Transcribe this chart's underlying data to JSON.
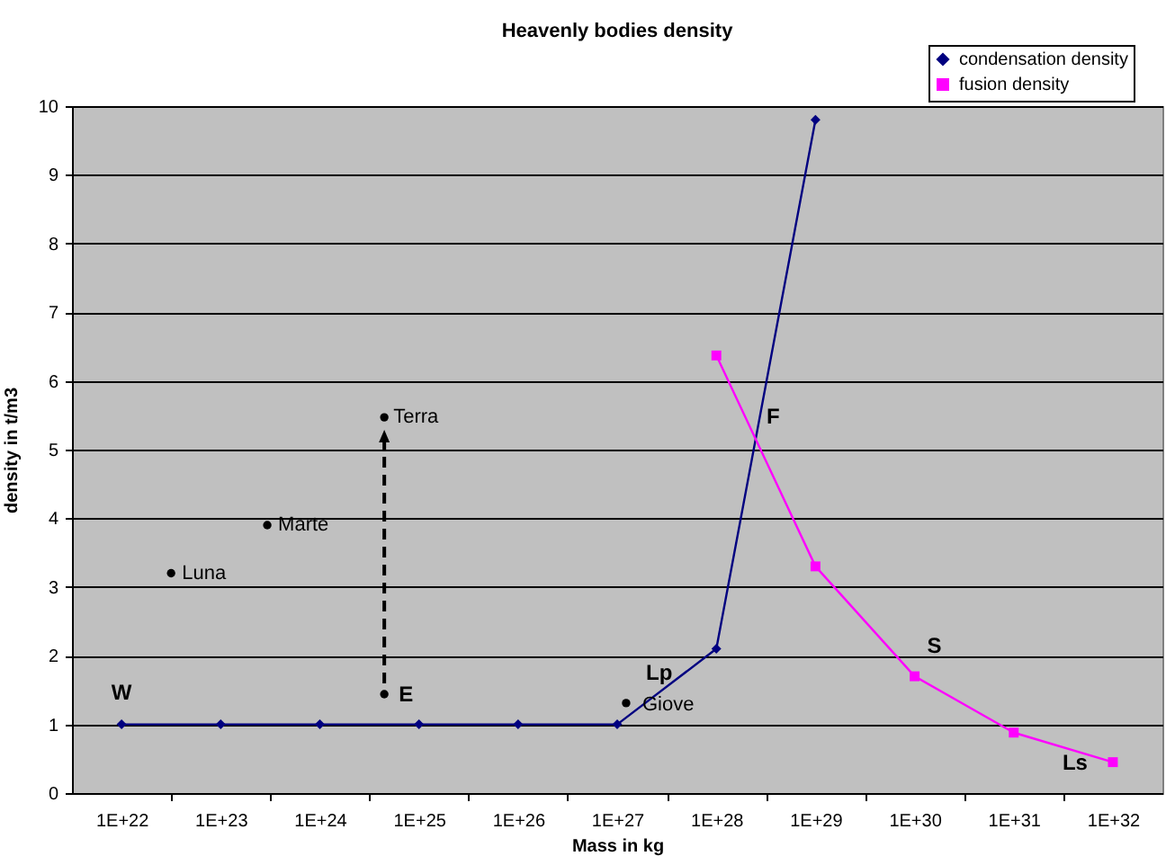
{
  "chart_data": {
    "type": "line",
    "title": "Heavenly bodies density",
    "xlabel": "Mass in kg",
    "ylabel": "density in t/m3",
    "log": "x",
    "xlim": [
      3.16e+21,
      3.16e+32
    ],
    "xticks": [
      {
        "value": 1e+22,
        "label": "1E+22"
      },
      {
        "value": 3.16e+22,
        "label": null
      },
      {
        "value": 1e+23,
        "label": "1E+23"
      },
      {
        "value": 3.16e+23,
        "label": null
      },
      {
        "value": 1e+24,
        "label": "1E+24"
      },
      {
        "value": 3.16e+24,
        "label": null
      },
      {
        "value": 1e+25,
        "label": "1E+25"
      },
      {
        "value": 3.16e+25,
        "label": null
      },
      {
        "value": 1e+26,
        "label": "1E+26"
      },
      {
        "value": 3.16e+26,
        "label": null
      },
      {
        "value": 1e+27,
        "label": "1E+27"
      },
      {
        "value": 3.16e+27,
        "label": null
      },
      {
        "value": 1e+28,
        "label": "1E+28"
      },
      {
        "value": 3.16e+28,
        "label": null
      },
      {
        "value": 1e+29,
        "label": "1E+29"
      },
      {
        "value": 3.16e+29,
        "label": null
      },
      {
        "value": 1e+30,
        "label": "1E+30"
      },
      {
        "value": 3.16e+30,
        "label": null
      },
      {
        "value": 1e+31,
        "label": "1E+31"
      },
      {
        "value": 3.16e+31,
        "label": null
      },
      {
        "value": 1e+32,
        "label": "1E+32"
      }
    ],
    "ylim": [
      0,
      10
    ],
    "yticks": [
      0,
      1,
      2,
      3,
      4,
      5,
      6,
      7,
      8,
      9,
      10
    ],
    "grid": "y",
    "legend": "top right",
    "series": [
      {
        "name": "condensation density",
        "type": "line",
        "color": "#000080",
        "marker": "diamond",
        "x": [
          1e+22,
          1e+23,
          1e+24,
          1e+25,
          1e+26,
          1e+27,
          1e+28,
          1e+29
        ],
        "values": [
          1,
          1,
          1,
          1,
          1,
          1,
          2.1,
          9.8
        ]
      },
      {
        "name": "fusion density",
        "type": "line",
        "color": "#ff00ff",
        "marker": "square",
        "x": [
          1e+28,
          1e+29,
          1e+30,
          1e+31,
          1e+32
        ],
        "values": [
          6.37,
          3.3,
          1.7,
          0.88,
          0.45
        ]
      },
      {
        "type": "scatter",
        "color": "#000000",
        "marker": "circle",
        "x": [
          3.16e+22,
          2.95e+23,
          4.47e+24,
          4.47e+24,
          1.23e+27
        ],
        "values": [
          3.2,
          3.9,
          5.47,
          1.44,
          1.31
        ]
      }
    ],
    "annotations": [
      {
        "text": "Luna",
        "x": 3.16e+22,
        "y": 3.2
      },
      {
        "text": "Marte",
        "x": 2.95e+23,
        "y": 3.9
      },
      {
        "text": "Terra",
        "x": 4.47e+24,
        "y": 5.47
      },
      {
        "text": "E",
        "x": 4.47e+24,
        "y": 1.44
      },
      {
        "text": "Giove",
        "x": 1.23e+27,
        "y": 1.31
      },
      {
        "text": "W",
        "x": 1e+22,
        "y": 1
      },
      {
        "text": "Lp",
        "x": 1e+27,
        "y": 1
      },
      {
        "text": "F",
        "x": 2.5e+28,
        "y": 5.15
      },
      {
        "text": "S",
        "x": 1e+30,
        "y": 1.7
      },
      {
        "text": "Ls",
        "x": 1e+32,
        "y": 0.45
      }
    ]
  }
}
